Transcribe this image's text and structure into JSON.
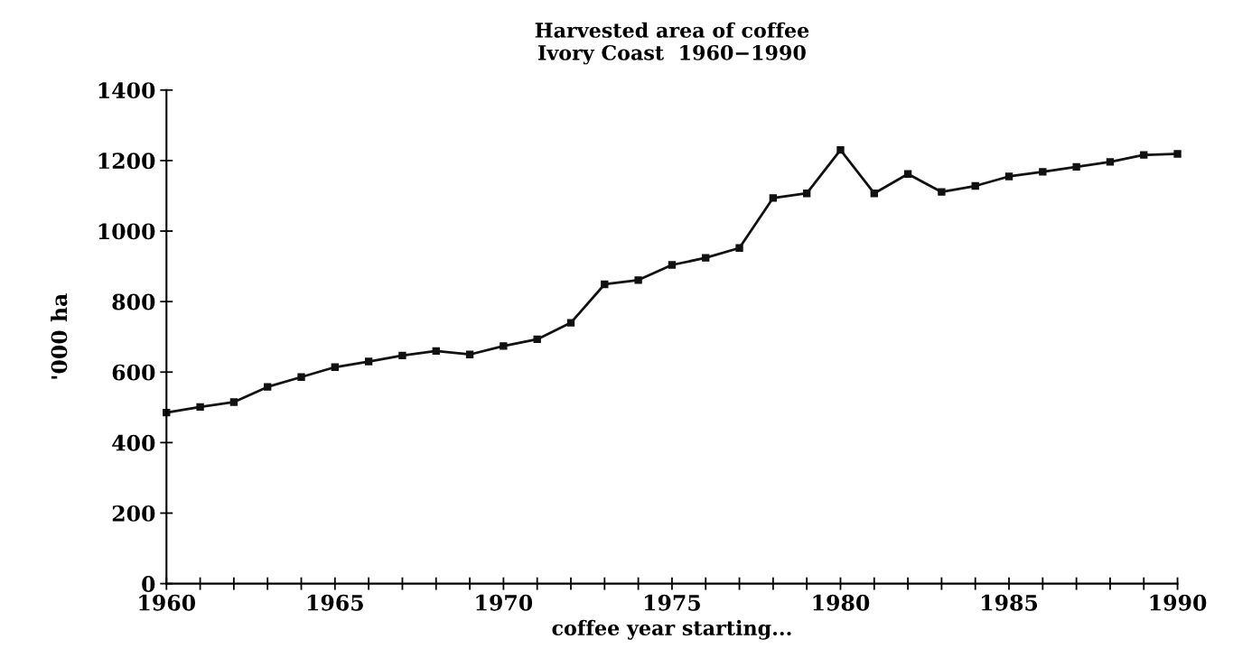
{
  "chart_data": {
    "type": "line",
    "title": "Harvested area of coffee\nIvory Coast  1960−1990",
    "xlabel": "coffee year starting...",
    "ylabel": "'000 ha",
    "x": [
      1960,
      1961,
      1962,
      1963,
      1964,
      1965,
      1966,
      1967,
      1968,
      1969,
      1970,
      1971,
      1972,
      1973,
      1974,
      1975,
      1976,
      1977,
      1978,
      1979,
      1980,
      1981,
      1982,
      1983,
      1984,
      1985,
      1986,
      1987,
      1988,
      1989,
      1990
    ],
    "series": [
      {
        "color": "#111111",
        "values": [
          485,
          501,
          515,
          558,
          586,
          614,
          630,
          647,
          660,
          650,
          674,
          693,
          740,
          849,
          861,
          904,
          924,
          952,
          1094,
          1107,
          1230,
          1107,
          1162,
          1111,
          1128,
          1155,
          1168,
          1182,
          1196,
          1216,
          1219
        ]
      }
    ],
    "xlim": [
      1960,
      1990
    ],
    "ylim": [
      0,
      1400
    ],
    "xticks": [
      1960,
      {
        "value": 1961,
        "label": null
      },
      {
        "value": 1962,
        "label": null
      },
      {
        "value": 1963,
        "label": null
      },
      {
        "value": 1964,
        "label": null
      },
      1965,
      {
        "value": 1966,
        "label": null
      },
      {
        "value": 1967,
        "label": null
      },
      {
        "value": 1968,
        "label": null
      },
      {
        "value": 1969,
        "label": null
      },
      1970,
      {
        "value": 1971,
        "label": null
      },
      {
        "value": 1972,
        "label": null
      },
      {
        "value": 1973,
        "label": null
      },
      {
        "value": 1974,
        "label": null
      },
      1975,
      {
        "value": 1976,
        "label": null
      },
      {
        "value": 1977,
        "label": null
      },
      {
        "value": 1978,
        "label": null
      },
      {
        "value": 1979,
        "label": null
      },
      1980,
      {
        "value": 1981,
        "label": null
      },
      {
        "value": 1982,
        "label": null
      },
      {
        "value": 1983,
        "label": null
      },
      {
        "value": 1984,
        "label": null
      },
      1985,
      {
        "value": 1986,
        "label": null
      },
      {
        "value": 1987,
        "label": null
      },
      {
        "value": 1988,
        "label": null
      },
      {
        "value": 1989,
        "label": null
      },
      1990
    ],
    "yticks": [
      0,
      200,
      400,
      600,
      800,
      1000,
      1200,
      1400
    ],
    "grid": false,
    "legend": false,
    "marker": "square",
    "line_style": "solid"
  }
}
